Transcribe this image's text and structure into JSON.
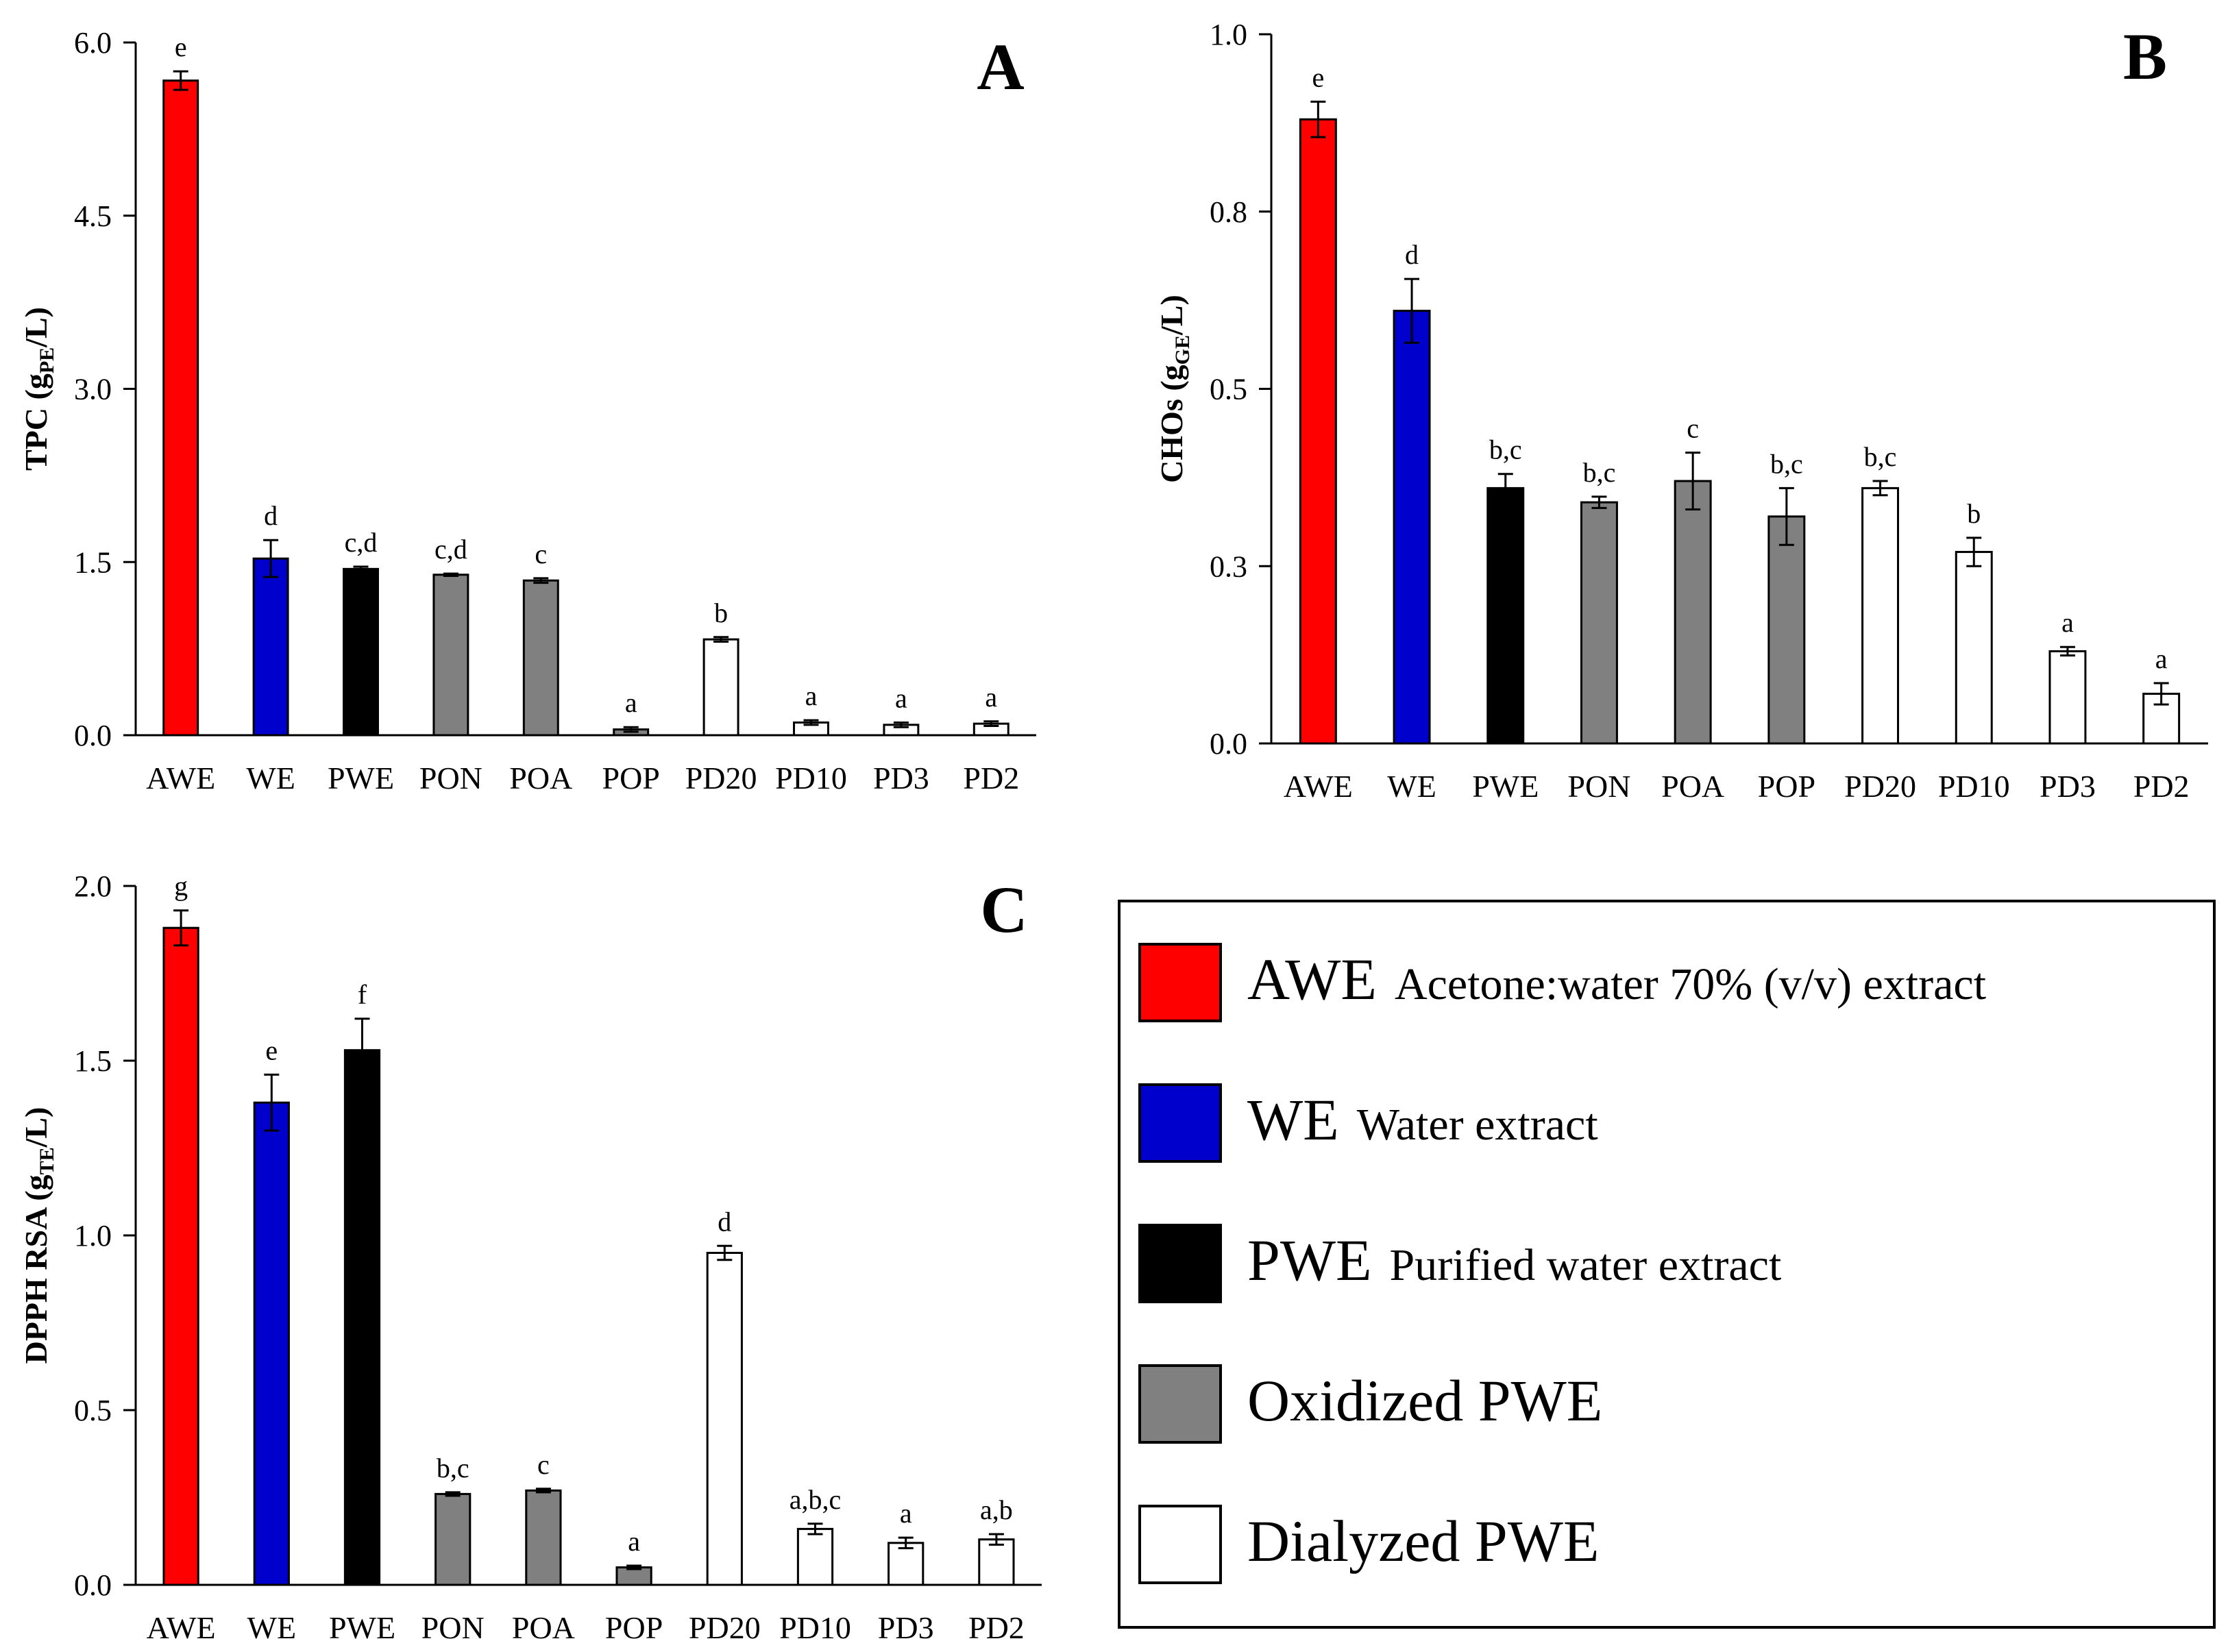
{
  "chart_data": [
    {
      "panel": "A",
      "type": "bar",
      "ylabel": "TPC (g",
      "ylabel_sub": "PE",
      "ylabel_tail": "/L)",
      "ylim": [
        0,
        6.0
      ],
      "yticks": [
        "0.0",
        "1.5",
        "3.0",
        "4.5",
        "6.0"
      ],
      "categories": [
        "AWE",
        "WE",
        "PWE",
        "PON",
        "POA",
        "POP",
        "PD20",
        "PD10",
        "PD3",
        "PD2"
      ],
      "values": [
        5.67,
        1.53,
        1.44,
        1.39,
        1.34,
        0.05,
        0.83,
        0.11,
        0.09,
        0.1
      ],
      "errors": [
        0.08,
        0.16,
        0.02,
        0.01,
        0.02,
        0.02,
        0.02,
        0.02,
        0.02,
        0.02
      ],
      "letters": [
        "e",
        "d",
        "c,d",
        "c,d",
        "c",
        "a",
        "b",
        "a",
        "a",
        "a"
      ],
      "colors": [
        "#ff0000",
        "#0000cc",
        "#000000",
        "#808080",
        "#808080",
        "#808080",
        "#ffffff",
        "#ffffff",
        "#ffffff",
        "#ffffff"
      ],
      "grid": false
    },
    {
      "panel": "B",
      "type": "bar",
      "ylabel": "CHOs (g",
      "ylabel_sub": "GE",
      "ylabel_tail": "/L)",
      "ylim": [
        0,
        1.0
      ],
      "yticks": [
        "0.0",
        "0.3",
        "0.5",
        "0.8",
        "1.0"
      ],
      "categories": [
        "AWE",
        "WE",
        "PWE",
        "PON",
        "POA",
        "POP",
        "PD20",
        "PD10",
        "PD3",
        "PD2"
      ],
      "values": [
        0.88,
        0.61,
        0.36,
        0.34,
        0.37,
        0.32,
        0.36,
        0.27,
        0.13,
        0.07
      ],
      "errors": [
        0.025,
        0.045,
        0.02,
        0.008,
        0.04,
        0.04,
        0.01,
        0.02,
        0.006,
        0.015
      ],
      "letters": [
        "e",
        "d",
        "b,c",
        "b,c",
        "c",
        "b,c",
        "b,c",
        "b",
        "a",
        "a"
      ],
      "colors": [
        "#ff0000",
        "#0000cc",
        "#000000",
        "#808080",
        "#808080",
        "#808080",
        "#ffffff",
        "#ffffff",
        "#ffffff",
        "#ffffff"
      ],
      "grid": false
    },
    {
      "panel": "C",
      "type": "bar",
      "ylabel": "DPPH RSA (g",
      "ylabel_sub": "TE",
      "ylabel_tail": "/L)",
      "ylim": [
        0,
        2.0
      ],
      "yticks": [
        "0.0",
        "0.5",
        "1.0",
        "1.5",
        "2.0"
      ],
      "categories": [
        "AWE",
        "WE",
        "PWE",
        "PON",
        "POA",
        "POP",
        "PD20",
        "PD10",
        "PD3",
        "PD2"
      ],
      "values": [
        1.88,
        1.38,
        1.53,
        0.26,
        0.27,
        0.05,
        0.95,
        0.16,
        0.12,
        0.13
      ],
      "errors": [
        0.05,
        0.08,
        0.09,
        0.005,
        0.005,
        0.005,
        0.02,
        0.015,
        0.015,
        0.015
      ],
      "letters": [
        "g",
        "e",
        "f",
        "b,c",
        "c",
        "a",
        "d",
        "a,b,c",
        "a",
        "a,b"
      ],
      "colors": [
        "#ff0000",
        "#0000cc",
        "#000000",
        "#808080",
        "#808080",
        "#808080",
        "#ffffff",
        "#ffffff",
        "#ffffff",
        "#ffffff"
      ],
      "grid": false
    }
  ],
  "legend": {
    "placement": "bottom-right",
    "items": [
      {
        "abbr": "AWE",
        "desc": "Acetone:water 70% (v/v) extract",
        "color": "#ff0000"
      },
      {
        "abbr": "WE",
        "desc": "Water extract",
        "color": "#0000cc"
      },
      {
        "abbr": "PWE",
        "desc": "Purified water extract",
        "color": "#000000"
      },
      {
        "abbr": "",
        "desc": "Oxidized PWE",
        "color": "#808080"
      },
      {
        "abbr": "",
        "desc": "Dialyzed PWE",
        "color": "#ffffff"
      }
    ]
  }
}
